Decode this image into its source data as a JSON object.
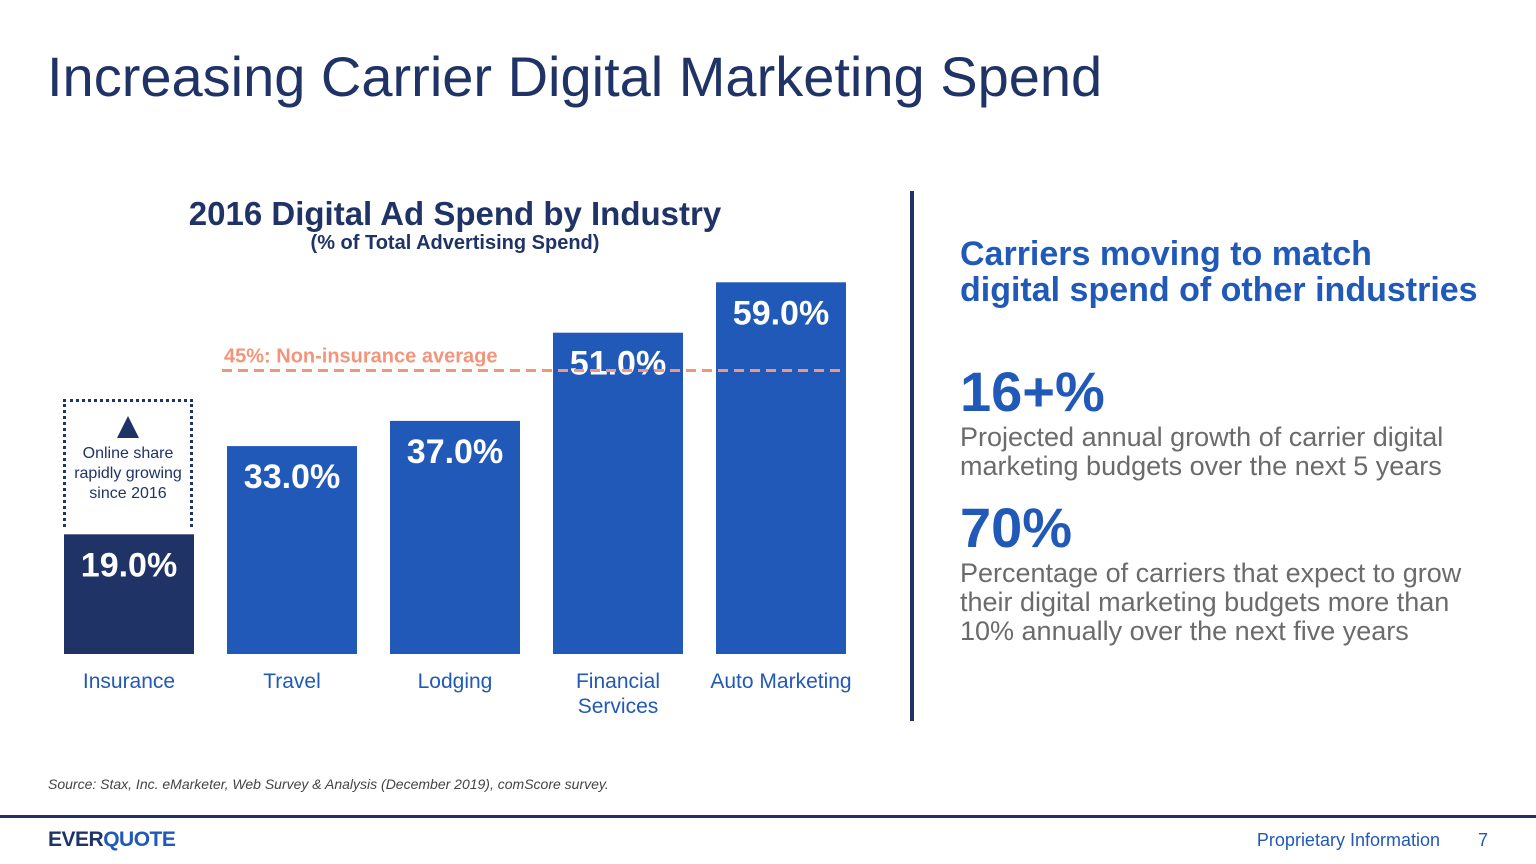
{
  "slide": {
    "title": "Increasing Carrier Digital Marketing Spend",
    "source": "Source: Stax, Inc.  eMarketer, Web Survey & Analysis (December 2019), comScore survey.",
    "footer": {
      "logo_part1": "EVER",
      "logo_part2": "QUOTE",
      "label": "Proprietary Information",
      "page": "7"
    }
  },
  "colors": {
    "dark_navy": "#1f3366",
    "bar_blue": "#2059b8",
    "reference_line": "#f2957a",
    "body_gray": "#6b6b6b"
  },
  "chart_data": {
    "type": "bar",
    "title": "2016 Digital Ad Spend by Industry",
    "subtitle": "(% of Total Advertising Spend)",
    "categories": [
      "Insurance",
      "Travel",
      "Lodging",
      "Financial Services",
      "Auto Marketing"
    ],
    "values": [
      19.0,
      33.0,
      37.0,
      51.0,
      59.0
    ],
    "value_labels": [
      "19.0%",
      "33.0%",
      "37.0%",
      "51.0%",
      "59.0%"
    ],
    "highlight_index": 0,
    "reference_line": {
      "value": 45,
      "label": "45%: Non-insurance average",
      "style": "dashed"
    },
    "xlabel": "",
    "ylabel": "",
    "ylim": [
      0,
      60
    ],
    "grid": false,
    "callout": {
      "text": "Online share\nrapidly growing\nsince 2016",
      "icon": "up-triangle-icon"
    }
  },
  "right_panel": {
    "heading": "Carriers moving to match digital spend of other industries",
    "stats": [
      {
        "value": "16+%",
        "text": "Projected annual growth of carrier digital marketing budgets over the next 5 years"
      },
      {
        "value": "70%",
        "text": "Percentage of carriers that expect to grow their  digital marketing budgets more than 10% annually over the next five years"
      }
    ]
  }
}
